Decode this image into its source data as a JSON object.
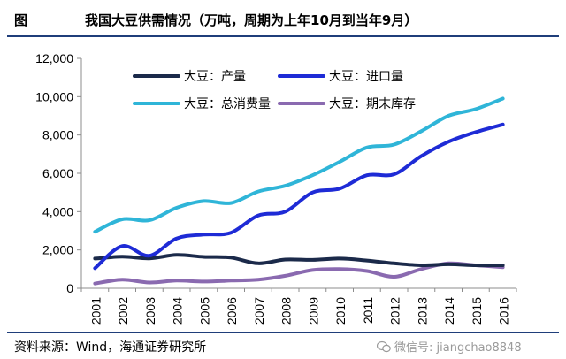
{
  "header": {
    "figure_label": "图",
    "title": "我国大豆供需情况（万吨，周期为上年10月到当年9月）"
  },
  "footer": {
    "source": "资料来源：Wind，海通证券研究所",
    "watermark": "微信号: jiangchao8848",
    "watermark_icon": "wechat-icon"
  },
  "chart_data": {
    "type": "line",
    "title": "我国大豆供需情况（万吨，周期为上年10月到当年9月）",
    "xlabel": "",
    "ylabel": "",
    "ylim": [
      0,
      12000
    ],
    "yticks": [
      0,
      2000,
      4000,
      6000,
      8000,
      10000,
      12000
    ],
    "ytick_labels": [
      "0",
      "2,000",
      "4,000",
      "6,000",
      "8,000",
      "10,000",
      "12,000"
    ],
    "categories": [
      "2001",
      "2002",
      "2003",
      "2004",
      "2005",
      "2006",
      "2007",
      "2008",
      "2009",
      "2010",
      "2011",
      "2012",
      "2013",
      "2014",
      "2015",
      "2016"
    ],
    "grid": false,
    "legend_position": "top",
    "series": [
      {
        "name": "大豆：产量",
        "color": "#1b2a4a",
        "values": [
          1550,
          1650,
          1560,
          1740,
          1640,
          1600,
          1300,
          1500,
          1480,
          1550,
          1450,
          1300,
          1200,
          1250,
          1200,
          1200
        ]
      },
      {
        "name": "大豆：进口量",
        "color": "#1e2bd6",
        "values": [
          1050,
          2200,
          1700,
          2600,
          2800,
          2900,
          3800,
          4000,
          5000,
          5200,
          5900,
          5950,
          6900,
          7650,
          8150,
          8550
        ]
      },
      {
        "name": "大豆：总消费量",
        "color": "#2fb5d8",
        "values": [
          2950,
          3600,
          3550,
          4200,
          4550,
          4450,
          5050,
          5350,
          5900,
          6600,
          7350,
          7500,
          8200,
          9000,
          9350,
          9900
        ]
      },
      {
        "name": "大豆：期末库存",
        "color": "#8a6ab0",
        "values": [
          250,
          450,
          300,
          400,
          350,
          400,
          450,
          650,
          950,
          1000,
          900,
          600,
          1000,
          1300,
          1200,
          1100
        ]
      }
    ]
  }
}
